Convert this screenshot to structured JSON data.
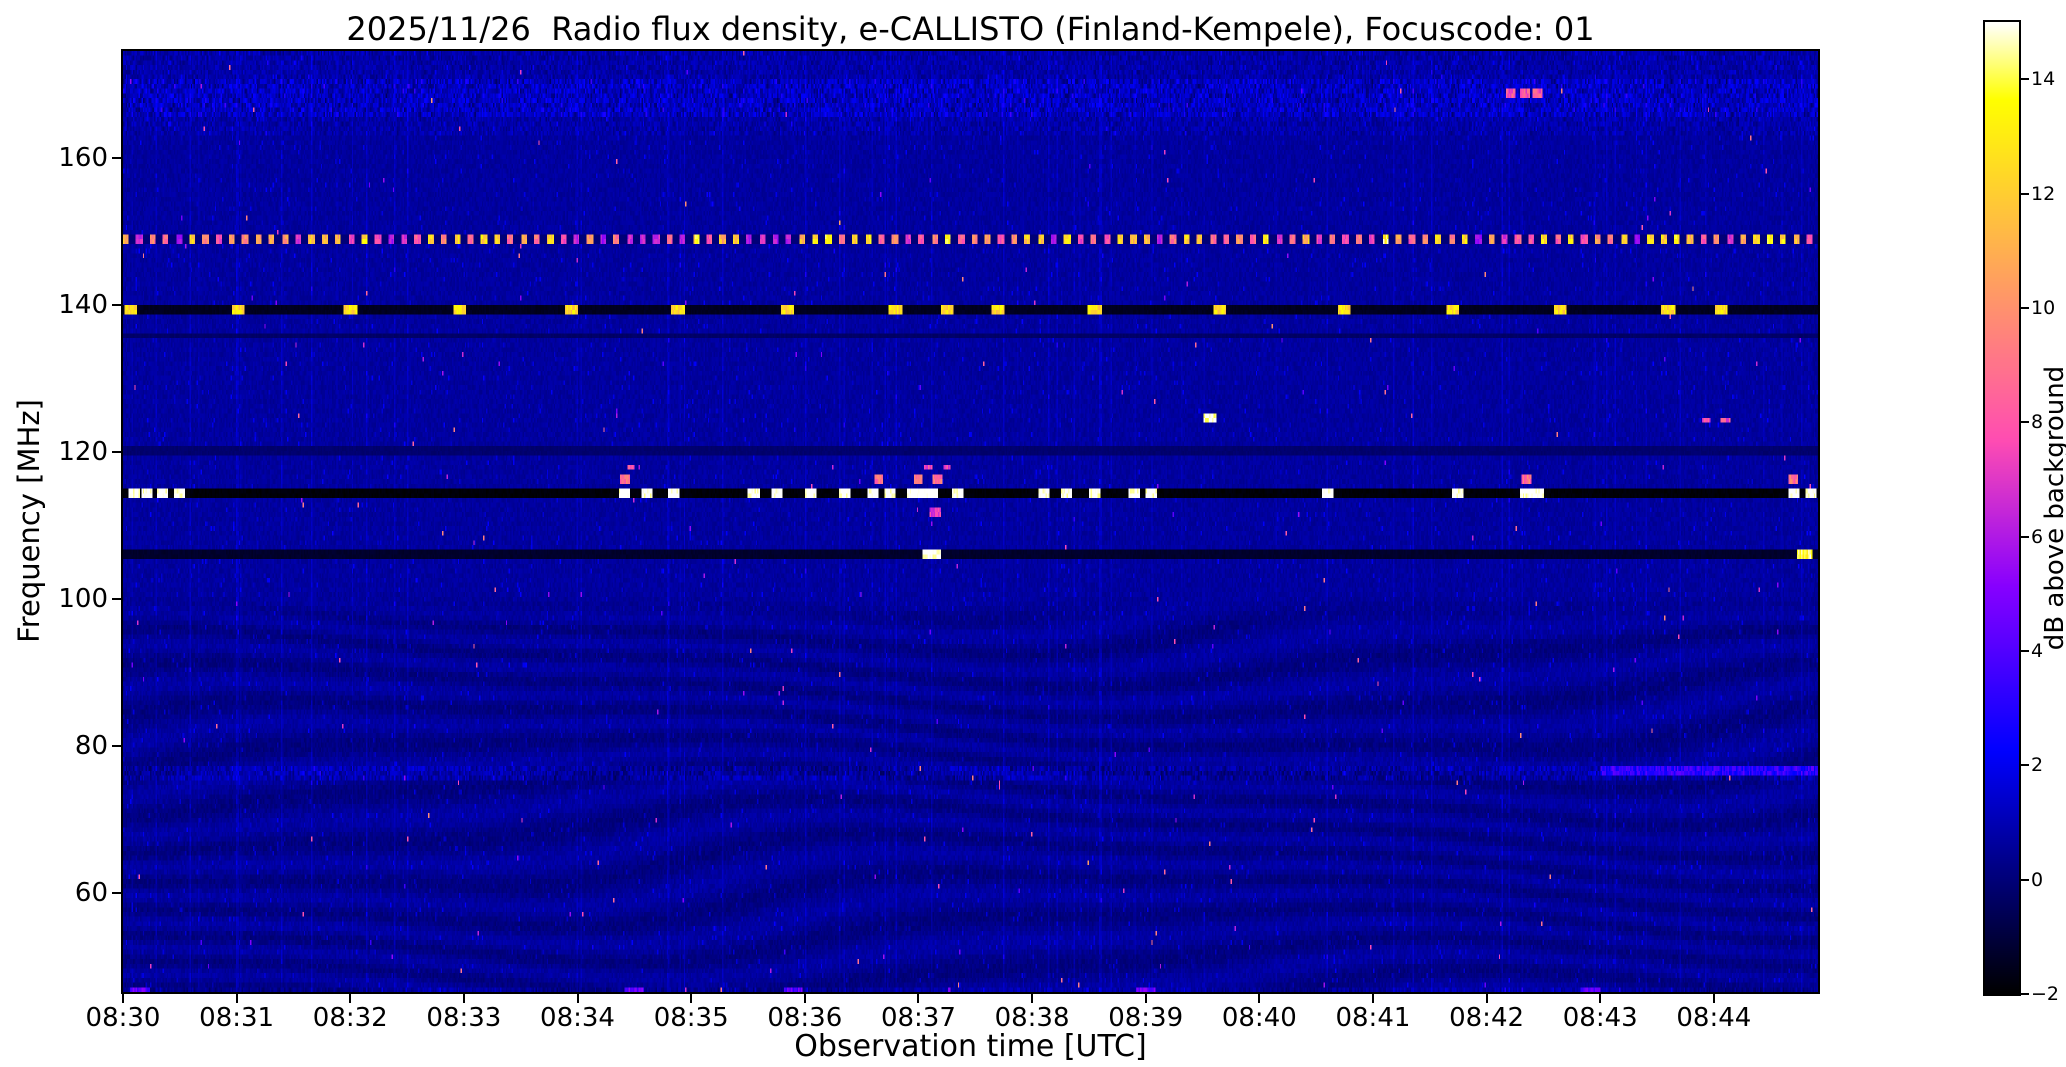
{
  "chart_data": {
    "type": "heatmap",
    "title": "2025/11/26  Radio flux density, e-CALLISTO (Finland-Kempele), Focuscode: 01",
    "xlabel": "Observation time [UTC]",
    "ylabel": "Frequency [MHz]",
    "colorbar_label": "dB above background",
    "colormap": "gnuplot2",
    "xtick_labels": [
      "08:30",
      "08:31",
      "08:32",
      "08:33",
      "08:34",
      "08:35",
      "08:36",
      "08:37",
      "08:38",
      "08:39",
      "08:40",
      "08:41",
      "08:42",
      "08:43",
      "08:44"
    ],
    "xtick_interval_s": 60,
    "duration_s": 895,
    "ylim": [
      46.5,
      174.5
    ],
    "yticks": [
      160,
      140,
      120,
      100,
      80,
      60
    ],
    "value_range": [
      -2,
      15
    ],
    "colorbar_ticks": [
      14,
      12,
      10,
      8,
      6,
      4,
      2,
      0,
      -2
    ],
    "background_value_db": 0.6,
    "features": [
      {
        "type": "noisy_band",
        "freq": 168.2,
        "width_mhz": 5.0,
        "boost": 1.1
      },
      {
        "type": "bursts",
        "freq": 168.6,
        "width_mhz": 1.0,
        "value": 8,
        "dur_s": 5,
        "times_s": [
          733,
          740,
          747
        ]
      },
      {
        "type": "bright_dashed",
        "freq": 148.6,
        "width_mhz": 1.3,
        "period_s": 7,
        "duty": 0.45,
        "value_min": 6,
        "value_max": 15,
        "gap_value": 0.0
      },
      {
        "type": "dark_line",
        "freq": 139.2,
        "width_mhz": 1.4,
        "value": -1.6
      },
      {
        "type": "bursts",
        "freq": 139.2,
        "width_mhz": 1.2,
        "value": 12.5,
        "dur_s": 7,
        "times_s": [
          4,
          61,
          120,
          178,
          237,
          293,
          351,
          408,
          435,
          462,
          513,
          579,
          645,
          702,
          759,
          816,
          844
        ]
      },
      {
        "type": "dark_line",
        "freq": 135.8,
        "width_mhz": 0.7,
        "value": -0.4
      },
      {
        "type": "dark_line",
        "freq": 120.1,
        "width_mhz": 0.7,
        "value": -0.3
      },
      {
        "type": "dark_line",
        "freq": 114.2,
        "width_mhz": 1.6,
        "value": -2.0
      },
      {
        "type": "bursts",
        "freq": 114.2,
        "width_mhz": 1.4,
        "value": 15.5,
        "dur_s": 6,
        "times_s": [
          6,
          13,
          21,
          30,
          265,
          277,
          291,
          333,
          345,
          363,
          381,
          396,
          405,
          417,
          441,
          486,
          498,
          513,
          534,
          543,
          636,
          705,
          741,
          747,
          882,
          891
        ]
      },
      {
        "type": "bursts",
        "freq": 114.2,
        "width_mhz": 1.6,
        "value": 16,
        "dur_s": 14,
        "times_s": [
          423
        ]
      },
      {
        "type": "bursts",
        "freq": 116.4,
        "width_mhz": 1.2,
        "value": 9,
        "dur_s": 5,
        "times_s": [
          265,
          399,
          420,
          430,
          741,
          882
        ]
      },
      {
        "type": "bursts",
        "freq": 117.8,
        "width_mhz": 0.9,
        "value": 7.5,
        "dur_s": 4,
        "times_s": [
          268,
          425,
          435
        ]
      },
      {
        "type": "bursts",
        "freq": 111.8,
        "width_mhz": 0.9,
        "value": 7,
        "dur_s": 6,
        "times_s": [
          429
        ]
      },
      {
        "type": "dark_line",
        "freq": 106.3,
        "width_mhz": 1.3,
        "value": -1.4
      },
      {
        "type": "bursts",
        "freq": 106.3,
        "width_mhz": 1.2,
        "value": 15.5,
        "dur_s": 10,
        "times_s": [
          427
        ]
      },
      {
        "type": "bursts",
        "freq": 106.3,
        "width_mhz": 1.2,
        "value": 14,
        "dur_s": 8,
        "times_s": [
          888
        ]
      },
      {
        "type": "bursts",
        "freq": 124.8,
        "width_mhz": 1.4,
        "value": 15,
        "dur_s": 7,
        "times_s": [
          574
        ]
      },
      {
        "type": "bursts",
        "freq": 124.2,
        "width_mhz": 1.0,
        "value": 7.5,
        "dur_s": 5,
        "times_s": [
          836,
          846
        ]
      },
      {
        "type": "noisy_band",
        "freq": 76.2,
        "width_mhz": 2.4,
        "boost": 0.9
      },
      {
        "type": "bursts",
        "freq": 76.4,
        "width_mhz": 1.0,
        "value": 3.2,
        "dur_s": 130,
        "times_s": [
          845
        ]
      },
      {
        "type": "noisy_band",
        "freq": 46.8,
        "width_mhz": 1.2,
        "boost": 0.5
      },
      {
        "type": "bursts",
        "freq": 46.6,
        "width_mhz": 1.0,
        "value": 4.2,
        "dur_s": 10,
        "times_s": [
          9,
          270,
          354,
          540,
          775
        ]
      }
    ]
  }
}
